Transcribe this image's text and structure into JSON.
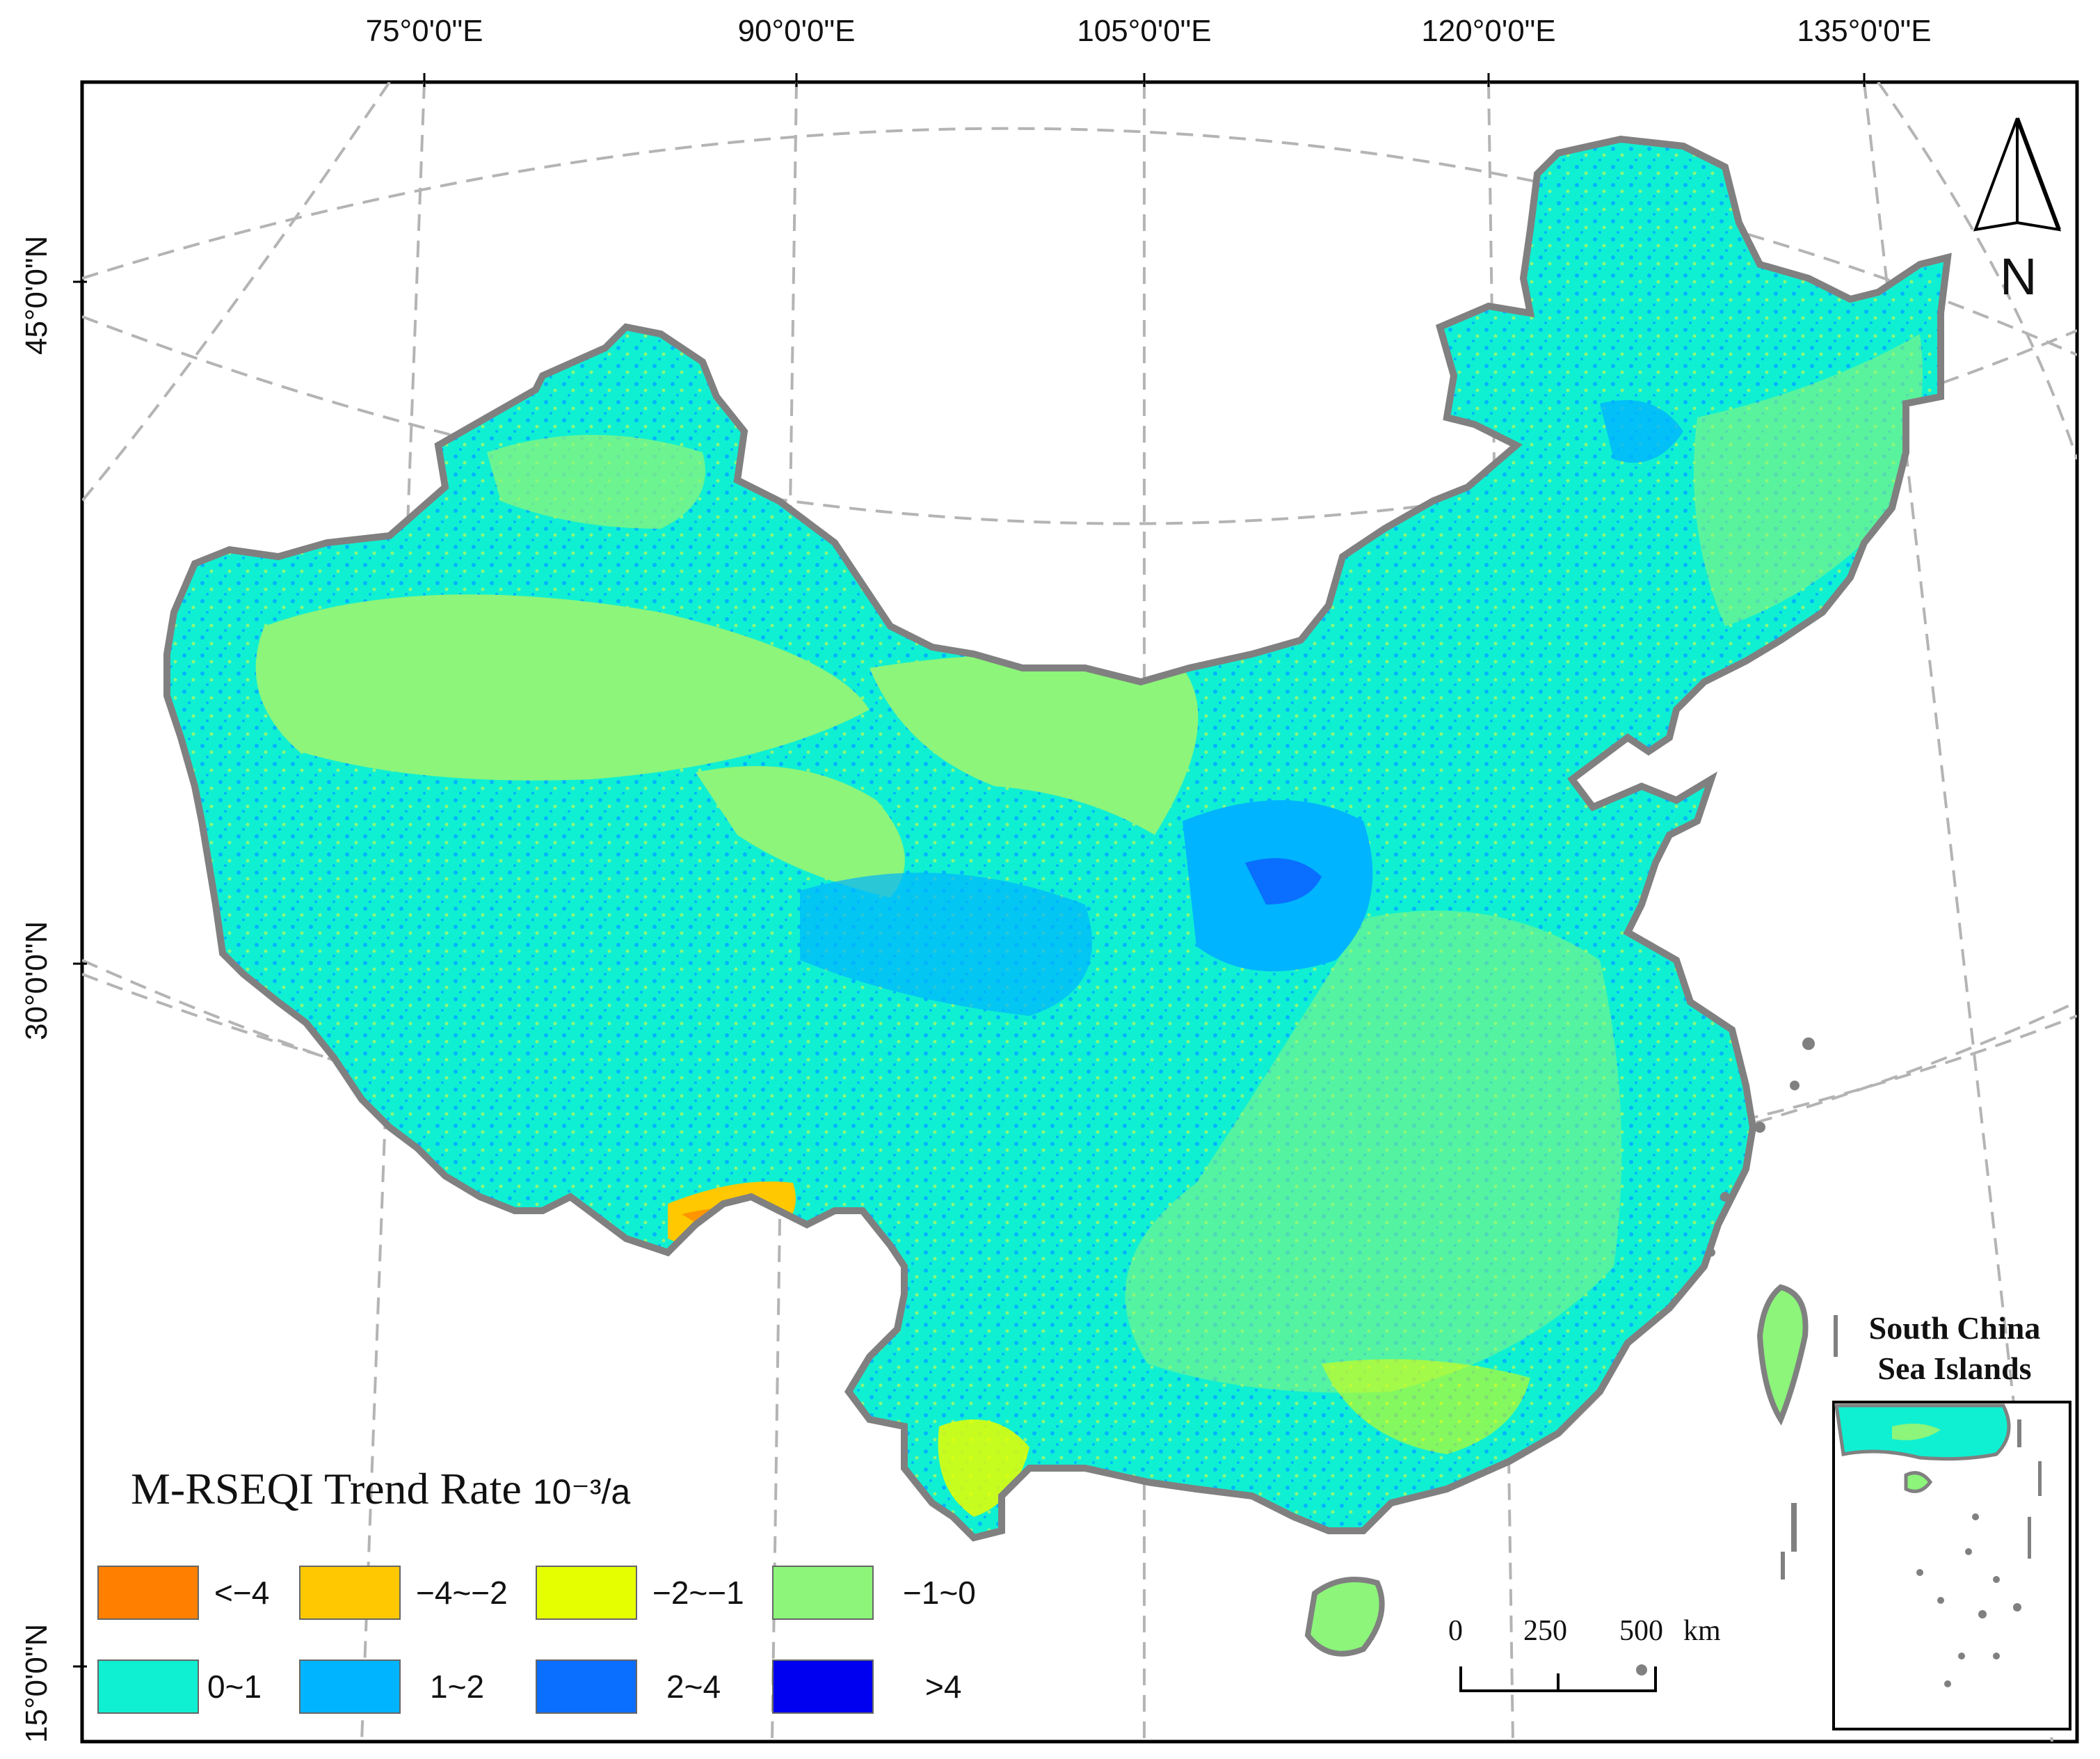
{
  "map": {
    "longitude_labels": [
      "75°0'0\"E",
      "90°0'0\"E",
      "105°0'0\"E",
      "120°0'0\"E",
      "135°0'0\"E"
    ],
    "latitude_labels": [
      "45°0'0\"N",
      "30°0'0\"N",
      "15°0'0\"N"
    ],
    "north_arrow_label": "N"
  },
  "legend": {
    "title": "M-RSEQI Trend Rate",
    "unit": "10⁻³/a",
    "classes": [
      {
        "label": "<−4",
        "color": "#ff7f00"
      },
      {
        "label": "−4~−2",
        "color": "#ffc800"
      },
      {
        "label": "−2~−1",
        "color": "#e6ff00"
      },
      {
        "label": "−1~0",
        "color": "#8cf57a"
      },
      {
        "label": "0~1",
        "color": "#0ff0d2"
      },
      {
        "label": "1~2",
        "color": "#00b4ff"
      },
      {
        "label": "2~4",
        "color": "#0a6eff"
      },
      {
        "label": ">4",
        "color": "#0000f0"
      }
    ]
  },
  "scale_bar": {
    "ticks": [
      "0",
      "250",
      "500"
    ],
    "unit": "km"
  },
  "inset": {
    "title_line1": "South China",
    "title_line2": "Sea Islands"
  },
  "colors": {
    "boundary": "#808080",
    "graticule": "#b4b4b4",
    "frame": "#000000"
  }
}
